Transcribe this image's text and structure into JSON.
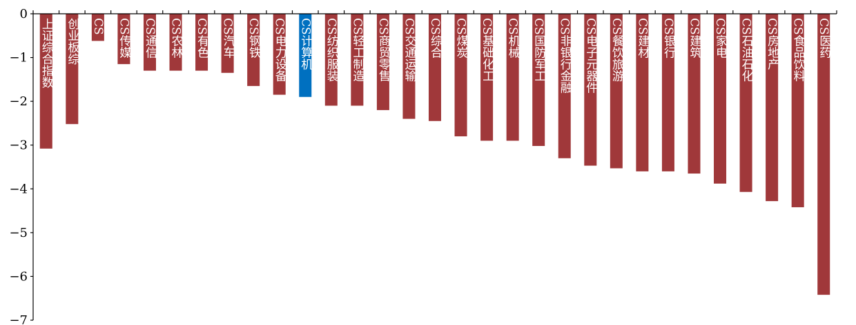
{
  "chart_data": {
    "type": "bar",
    "title": "",
    "xlabel": "",
    "ylabel": "",
    "ylim": [
      -7,
      0
    ],
    "yticks": [
      "0",
      "−1",
      "−2",
      "−3",
      "−4",
      "−5",
      "−6",
      "−7"
    ],
    "grid": false,
    "legend": "none",
    "colors": {
      "default": "#A0383A",
      "highlight": "#0070C0",
      "axis": "#000000",
      "label": "#ffffff"
    },
    "highlight_category": "CS计算机",
    "categories": [
      "上证综合指数",
      "创业板综",
      "CS传媒",
      "CS传媒",
      "CS通信",
      "CS农林牧渔",
      "CS有色金属",
      "CS汽车",
      "CS钢铁",
      "CS电力设备",
      "CS计算机",
      "CS纺织服装",
      "CS轻工制造",
      "CS商贸零售",
      "CS交通运输",
      "CS综合",
      "CS煤炭",
      "CS基础化工",
      "CS机械",
      "CS国防军工",
      "CS非银行金融",
      "CS电子元器件",
      "CS餐饮旅游",
      "CS建材",
      "CS银行",
      "CS建筑",
      "CS家电",
      "CS石油石化",
      "CS房地产",
      "CS食品饮料",
      "CS医药"
    ],
    "values": [
      -3.08,
      -2.52,
      -0.62,
      -1.15,
      -1.3,
      -1.3,
      -1.3,
      -1.35,
      -1.65,
      -1.85,
      -1.9,
      -2.1,
      -2.1,
      -2.2,
      -2.4,
      -2.45,
      -2.8,
      -2.9,
      -2.9,
      -3.02,
      -3.3,
      -3.47,
      -3.53,
      -3.6,
      -3.6,
      -3.65,
      -3.88,
      -4.07,
      -4.28,
      -4.42,
      -6.42
    ],
    "visible_labels": [
      "上证综合指数",
      "创业板综",
      "CS",
      "CS传媒",
      "CS通信",
      "CS农林",
      "CS有色",
      "CS汽车",
      "CS钢铁",
      "CS电力设备",
      "CS计算机",
      "CS纺织服装",
      "CS轻工制造",
      "CS商贸零售",
      "CS交通运输",
      "CS综合",
      "CS煤炭",
      "CS基础化工",
      "CS机械",
      "CS国防军工",
      "CS非银行金融",
      "CS电子元器件",
      "CS餐饮旅游",
      "CS建材",
      "CS银行",
      "CS建筑",
      "CS家电",
      "CS石油石化",
      "CS房地产",
      "CS食品饮料",
      "CS医药"
    ]
  }
}
